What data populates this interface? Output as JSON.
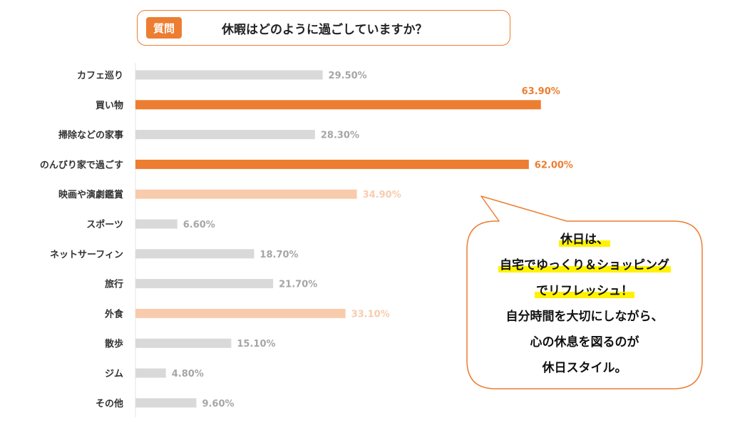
{
  "question": {
    "badge": "質問",
    "text": "休暇はどのように過ごしていますか？"
  },
  "colors": {
    "accent": "#ED7D31",
    "highlight": "#F8CBAD",
    "normal_bar": "#D9D9D9",
    "normal_text": "#A6A6A6",
    "marker": "#FFF200"
  },
  "chart_data": {
    "type": "bar",
    "orientation": "horizontal",
    "title": "休暇はどのように過ごしていますか？",
    "xlim": [
      0,
      100
    ],
    "unit": "%",
    "grid": false,
    "categories": [
      "カフェ巡り",
      "買い物",
      "掃除などの家事",
      "のんびり家で過ごす",
      "映画や演劇鑑賞",
      "スポーツ",
      "ネットサーフィン",
      "旅行",
      "外食",
      "散歩",
      "ジム",
      "その他"
    ],
    "values": [
      29.5,
      63.9,
      28.3,
      62.0,
      34.9,
      6.6,
      18.7,
      21.7,
      33.1,
      15.1,
      4.8,
      9.6
    ],
    "value_labels": [
      "29.50%",
      "63.90%",
      "28.30%",
      "62.00%",
      "34.90%",
      "6.60%",
      "18.70%",
      "21.70%",
      "33.10%",
      "15.10%",
      "4.80%",
      "9.60%"
    ],
    "emphasis": [
      "normal",
      "top",
      "normal",
      "top",
      "high",
      "normal",
      "normal",
      "normal",
      "high",
      "normal",
      "normal",
      "normal"
    ]
  },
  "callout": {
    "lines": [
      "休日は、",
      "自宅でゆっくり＆ショッピング",
      "でリフレッシュ！",
      "自分時間を大切にしながら、",
      "心の休息を図るのが",
      "休日スタイル。"
    ],
    "highlighted": [
      true,
      true,
      true,
      false,
      false,
      false
    ]
  }
}
